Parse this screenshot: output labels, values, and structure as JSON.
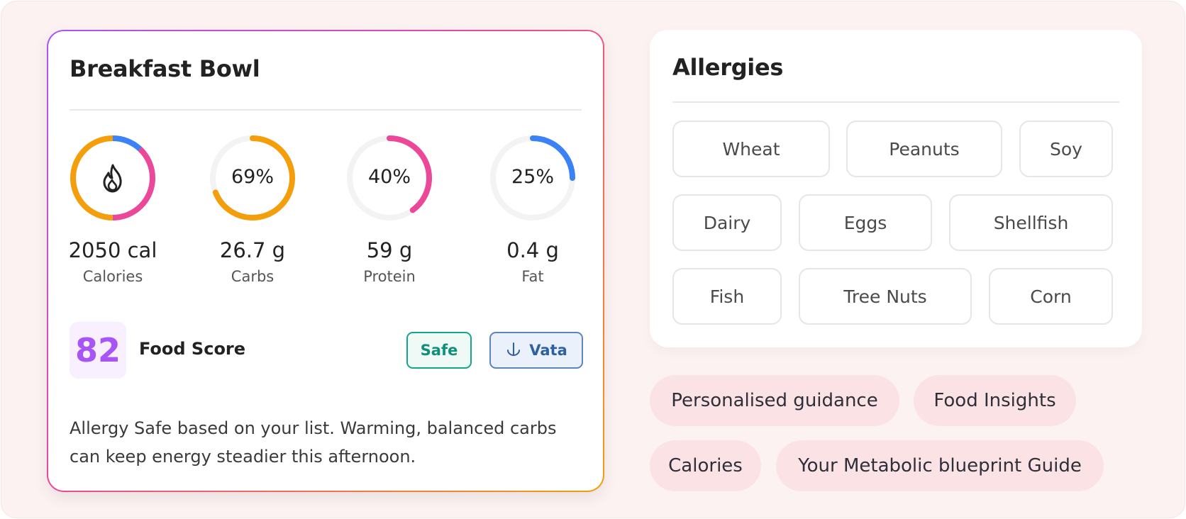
{
  "meal": {
    "title": "Breakfast Bowl",
    "macros": [
      {
        "value": "2050 cal",
        "name": "Calories",
        "ring_label": ""
      },
      {
        "value": "26.7 g",
        "name": "Carbs",
        "ring_label": "69%",
        "percent": 69,
        "color": "#f59e0b"
      },
      {
        "value": "59 g",
        "name": "Protein",
        "ring_label": "40%",
        "percent": 40,
        "color": "#ec4899"
      },
      {
        "value": "0.4 g",
        "name": "Fat",
        "ring_label": "25%",
        "percent": 25,
        "color": "#3b82f6"
      }
    ],
    "calories_ring": {
      "segments": [
        {
          "color": "#3b82f6",
          "percent": 12
        },
        {
          "color": "#ec4899",
          "percent": 38
        },
        {
          "color": "#f59e0b",
          "percent": 50
        }
      ],
      "icon": "flame-icon"
    },
    "score": {
      "value": "82",
      "label": "Food Score"
    },
    "badges": {
      "safe": "Safe",
      "vata": "Vata",
      "vata_icon": "anchor-icon"
    },
    "description": "Allergy Safe based on your list. Warming, balanced carbs can keep energy steadier this afternoon."
  },
  "allergies": {
    "title": "Allergies",
    "items": [
      "Wheat",
      "Peanuts",
      "Soy",
      "Dairy",
      "Eggs",
      "Shellfish",
      "Fish",
      "Tree Nuts",
      "Corn"
    ]
  },
  "links": [
    "Personalised guidance",
    "Food Insights",
    "Calories",
    "Your Metabolic blueprint Guide"
  ],
  "colors": {
    "accent_purple": "#a855f7",
    "carbs": "#f59e0b",
    "protein": "#ec4899",
    "fat": "#3b82f6",
    "safe": "#14a58a",
    "vata": "#5b84c4",
    "pill_bg": "#fbe3e5"
  }
}
